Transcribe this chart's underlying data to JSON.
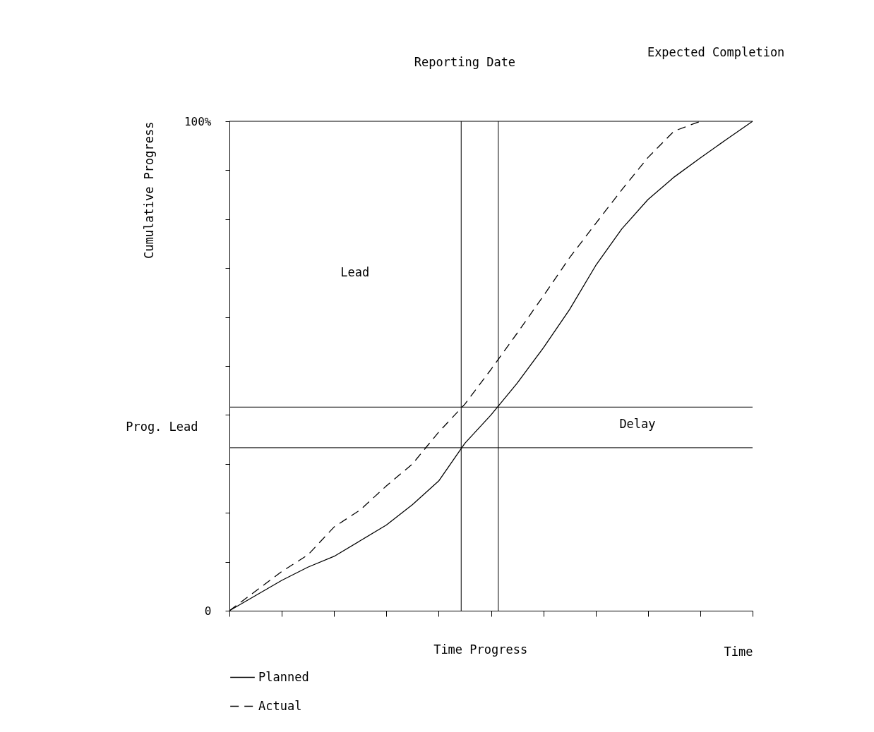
{
  "chart_data": {
    "type": "line",
    "xlabel": "Time",
    "ylabel": "Cumulative Progress",
    "categories": [
      null,
      null,
      null,
      null,
      null,
      null,
      null,
      null,
      null,
      null,
      null,
      null,
      null,
      null,
      null,
      null,
      null,
      null,
      null,
      null,
      null
    ],
    "ylim": [
      0,
      100
    ],
    "yticks": [
      0,
      {
        "value": 10,
        "label": null
      },
      {
        "value": 20,
        "label": null
      },
      {
        "value": 30,
        "label": null
      },
      {
        "value": 40,
        "label": null
      },
      {
        "value": 50,
        "label": null
      },
      {
        "value": 60,
        "label": null
      },
      {
        "value": 70,
        "label": null
      },
      {
        "value": 80,
        "label": null
      },
      {
        "value": 90,
        "label": null
      },
      {
        "value": 100,
        "label": "100%"
      }
    ],
    "grid": false,
    "legend": "bottom left",
    "series": [
      {
        "name": "Planned",
        "color": "#000000",
        "line_style": "solid",
        "values": [
          0,
          3.1,
          6.2,
          8.9,
          11.1,
          14.3,
          17.5,
          21.7,
          26.5,
          34.2,
          40,
          46.5,
          53.7,
          61.5,
          70.5,
          78,
          84,
          88.6,
          92.5,
          96.3,
          100
        ]
      },
      {
        "name": "Actual",
        "color": "#000000",
        "line_style": "dashed",
        "values": [
          0,
          4,
          8,
          11.4,
          17.1,
          20.6,
          25.5,
          30,
          36.5,
          42.2,
          49.3,
          56.7,
          64.3,
          72.1,
          79.1,
          86,
          92.6,
          98,
          100,
          null,
          null
        ]
      }
    ],
    "ref_lines": [
      {
        "axis": "y",
        "value": 33.3,
        "label": null
      },
      {
        "axis": "y",
        "value": 41.6,
        "label": null
      },
      {
        "axis": "y",
        "value": 100,
        "label": null
      }
    ],
    "annotations": [
      "Lead",
      "Delay",
      "Prog. Lead",
      "Time Progress",
      "Reporting Date",
      "Expected Completion"
    ]
  }
}
